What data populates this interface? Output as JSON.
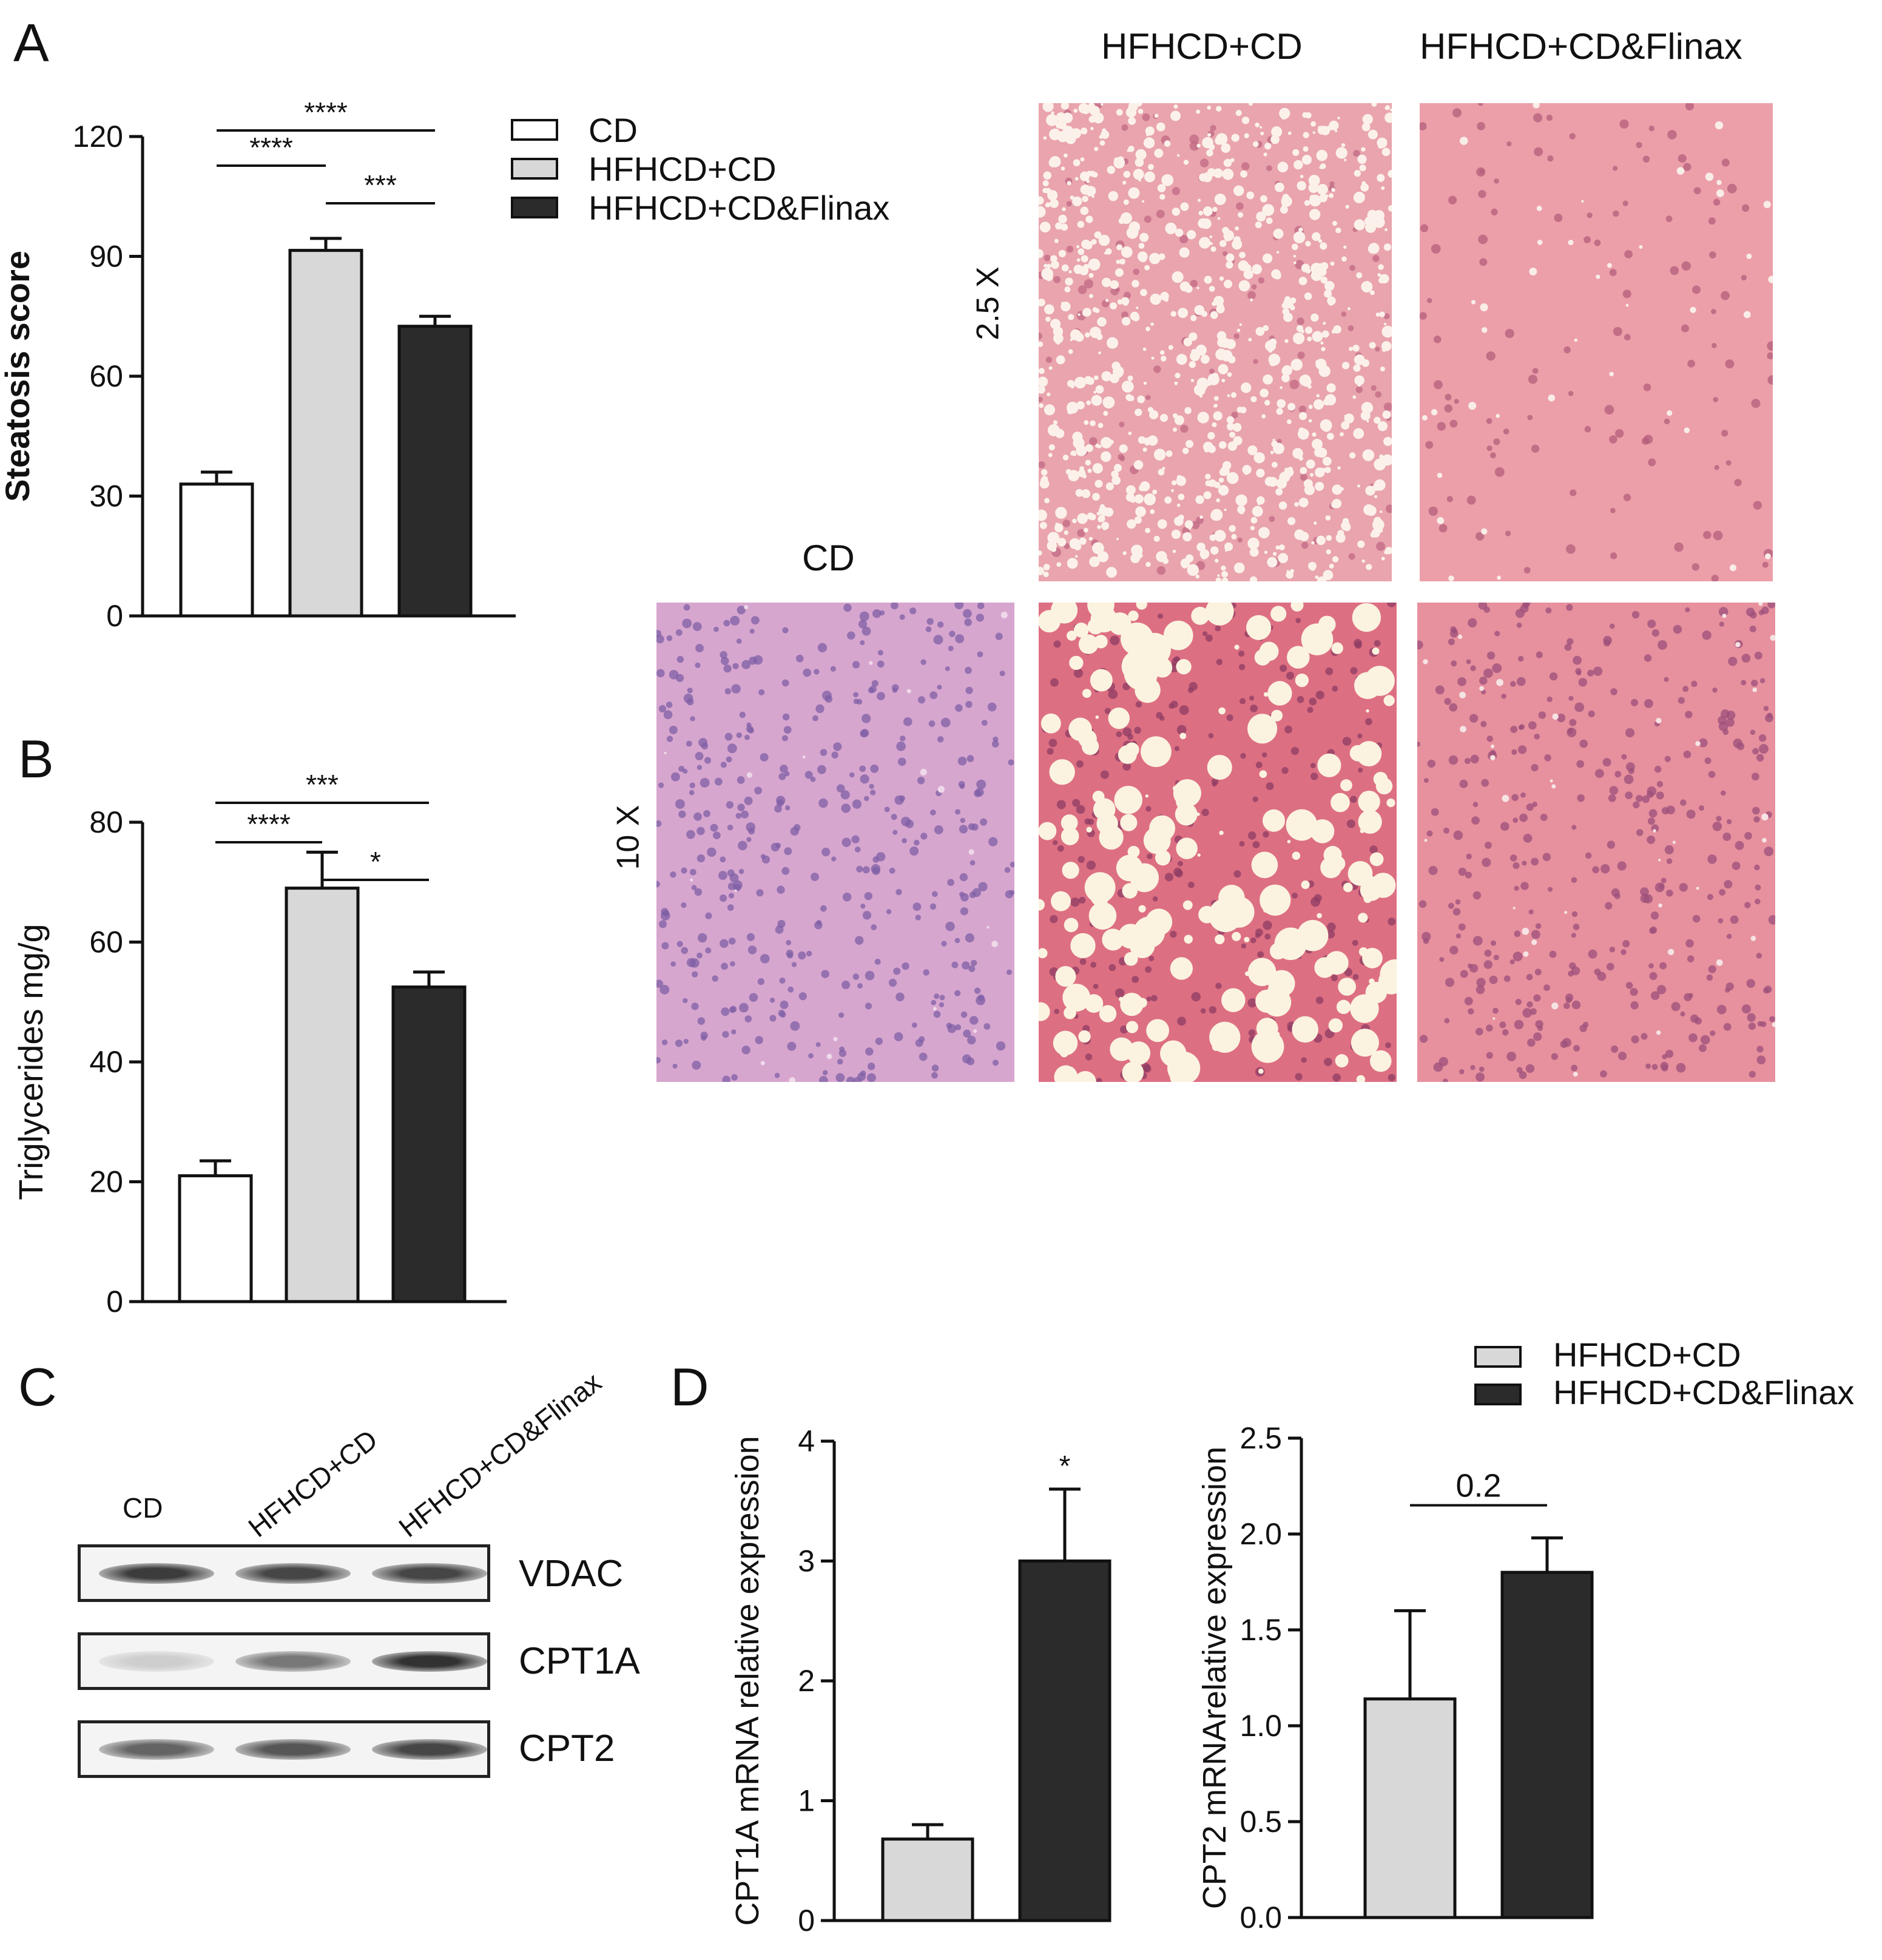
{
  "panels": {
    "a": "A",
    "b": "B",
    "c": "C",
    "d": "D"
  },
  "legend_main": {
    "items": [
      {
        "label": "CD",
        "color": "#ffffff"
      },
      {
        "label": "HFHCD+CD",
        "color": "#d8d8d8"
      },
      {
        "label": "HFHCD+CD&Flinax",
        "color": "#2b2b2b"
      }
    ]
  },
  "legend_d": {
    "items": [
      {
        "label": "HFHCD+CD",
        "color": "#d8d8d8"
      },
      {
        "label": "HFHCD+CD&Flinax",
        "color": "#2b2b2b"
      }
    ]
  },
  "histology": {
    "col_headers": [
      "CD",
      "HFHCD+CD",
      "HFHCD+CD&Flinax"
    ],
    "mag_top": "2.5 X",
    "mag_bottom": "10 X"
  },
  "western_blot": {
    "lanes": [
      "CD",
      "HFHCD+CD",
      "HFHCD+CD&Flinax"
    ],
    "proteins": [
      {
        "name": "VDAC",
        "intensity": [
          0.85,
          0.8,
          0.8
        ]
      },
      {
        "name": "CPT1A",
        "intensity": [
          0.12,
          0.55,
          0.9
        ]
      },
      {
        "name": "CPT2",
        "intensity": [
          0.65,
          0.72,
          0.8
        ]
      }
    ]
  },
  "chart_data": [
    {
      "id": "A",
      "type": "bar",
      "categories": [
        "CD",
        "HFHCD+CD",
        "HFHCD+CD&Flinax"
      ],
      "values": [
        33,
        91.5,
        72.5
      ],
      "errors": [
        3,
        3,
        2.5
      ],
      "colors": [
        "#ffffff",
        "#d8d8d8",
        "#2b2b2b"
      ],
      "ylabel": "Steatosis score",
      "ylim": [
        0,
        120
      ],
      "yticks": [
        0,
        30,
        60,
        90,
        120
      ],
      "ytick_labels": [
        "0",
        "30",
        "60",
        "90",
        "120"
      ],
      "significance": [
        {
          "from": 0,
          "to": 2,
          "label": "****",
          "level": 3
        },
        {
          "from": 0,
          "to": 1,
          "label": "****",
          "level": 2
        },
        {
          "from": 1,
          "to": 2,
          "label": "***",
          "level": 1
        }
      ]
    },
    {
      "id": "B",
      "type": "bar",
      "categories": [
        "CD",
        "HFHCD+CD",
        "HFHCD+CD&Flinax"
      ],
      "values": [
        21,
        69,
        52.5
      ],
      "errors": [
        2.5,
        6,
        2.5
      ],
      "colors": [
        "#ffffff",
        "#d8d8d8",
        "#2b2b2b"
      ],
      "ylabel": "Triglycerides mg/g",
      "ylim": [
        0,
        80
      ],
      "yticks": [
        0,
        20,
        40,
        60,
        80
      ],
      "ytick_labels": [
        "0",
        "20",
        "40",
        "60",
        "80"
      ],
      "significance": [
        {
          "from": 0,
          "to": 2,
          "label": "***",
          "level": 3
        },
        {
          "from": 0,
          "to": 1,
          "label": "****",
          "level": 2
        },
        {
          "from": 1,
          "to": 2,
          "label": "*",
          "level": 1
        }
      ]
    },
    {
      "id": "D1",
      "type": "bar",
      "categories": [
        "HFHCD+CD",
        "HFHCD+CD&Flinax"
      ],
      "values": [
        0.68,
        3.0
      ],
      "errors": [
        0.12,
        0.6
      ],
      "colors": [
        "#d8d8d8",
        "#2b2b2b"
      ],
      "ylabel": "CPT1A mRNA relative expression",
      "ylim": [
        0,
        4
      ],
      "yticks": [
        0,
        1,
        2,
        3,
        4
      ],
      "ytick_labels": [
        "0",
        "1",
        "2",
        "3",
        "4"
      ],
      "star_labels": [
        {
          "bar": 1,
          "label": "*"
        }
      ],
      "significance": []
    },
    {
      "id": "D2",
      "type": "bar",
      "categories": [
        "HFHCD+CD",
        "HFHCD+CD&Flinax"
      ],
      "values": [
        1.14,
        1.8
      ],
      "errors": [
        0.46,
        0.18
      ],
      "colors": [
        "#d8d8d8",
        "#2b2b2b"
      ],
      "ylabel": "CPT2 mRNArelative expression",
      "ylim": [
        0,
        2.5
      ],
      "yticks": [
        0,
        0.5,
        1,
        1.5,
        2,
        2.5
      ],
      "ytick_labels": [
        "0.0",
        "0.5",
        "1.0",
        "1.5",
        "2.0",
        "2.5"
      ],
      "significance": [
        {
          "from": 0,
          "to": 1,
          "label": "0.2",
          "level": 1
        }
      ]
    }
  ]
}
